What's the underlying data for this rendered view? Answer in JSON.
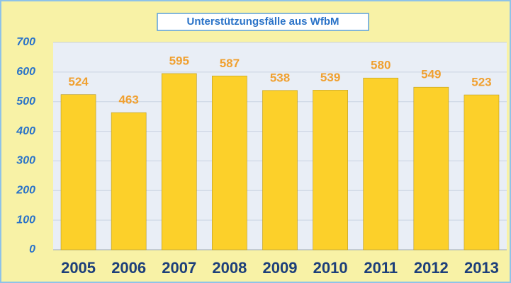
{
  "chart_data": {
    "type": "bar",
    "title": "Unterstützungsfälle aus WfbM",
    "categories": [
      "2005",
      "2006",
      "2007",
      "2008",
      "2009",
      "2010",
      "2011",
      "2012",
      "2013"
    ],
    "values": [
      524,
      463,
      595,
      587,
      538,
      539,
      580,
      549,
      523
    ],
    "color": "#fcd02a",
    "ylim": [
      0,
      700
    ],
    "yticks": [
      0,
      100,
      200,
      300,
      400,
      500,
      600,
      700
    ],
    "grid": true
  }
}
